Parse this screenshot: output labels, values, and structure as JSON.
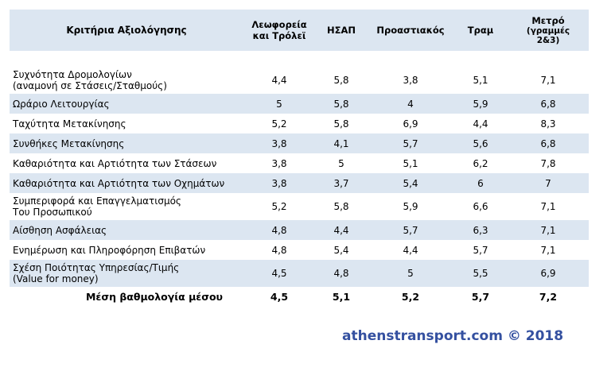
{
  "header": {
    "criteria": "Κριτήρια Αξιολόγησης",
    "bus_line1": "Λεωφορεία",
    "bus_line2": "και Τρόλεϊ",
    "isap": "ΗΣΑΠ",
    "suburban": "Προαστιακός",
    "tram": "Τραμ",
    "metro_line1": "Μετρό",
    "metro_line2": "(γραμμές",
    "metro_line3": "2&3)"
  },
  "rows": [
    {
      "label1": "Συχνότητα Δρομολογίων",
      "label2": "(αναμονή σε Στάσεις/Σταθμούς)",
      "bus": "4,4",
      "isap": "5,8",
      "suburban": "3,8",
      "tram": "5,1",
      "metro": "7,1"
    },
    {
      "label1": "Ωράριο Λειτουργίας",
      "label2": "",
      "bus": "5",
      "isap": "5,8",
      "suburban": "4",
      "tram": "5,9",
      "metro": "6,8"
    },
    {
      "label1": "Ταχύτητα Μετακίνησης",
      "label2": "",
      "bus": "5,2",
      "isap": "5,8",
      "suburban": "6,9",
      "tram": "4,4",
      "metro": "8,3"
    },
    {
      "label1": "Συνθήκες Μετακίνησης",
      "label2": "",
      "bus": "3,8",
      "isap": "4,1",
      "suburban": "5,7",
      "tram": "5,6",
      "metro": "6,8"
    },
    {
      "label1": "Καθαριότητα και Αρτιότητα των Στάσεων",
      "label2": "",
      "bus": "3,8",
      "isap": "5",
      "suburban": "5,1",
      "tram": "6,2",
      "metro": "7,8"
    },
    {
      "label1": "Καθαριότητα και Αρτιότητα των Οχημάτων",
      "label2": "",
      "bus": "3,8",
      "isap": "3,7",
      "suburban": "5,4",
      "tram": "6",
      "metro": "7"
    },
    {
      "label1": "Συμπεριφορά και Επαγγελματισμός",
      "label2": "Του Προσωπικού",
      "bus": "5,2",
      "isap": "5,8",
      "suburban": "5,9",
      "tram": "6,6",
      "metro": "7,1"
    },
    {
      "label1": "Αίσθηση Ασφάλειας",
      "label2": "",
      "bus": "4,8",
      "isap": "4,4",
      "suburban": "5,7",
      "tram": "6,3",
      "metro": "7,1"
    },
    {
      "label1": "Ενημέρωση και Πληροφόρηση Επιβατών",
      "label2": "",
      "bus": "4,8",
      "isap": "5,4",
      "suburban": "4,4",
      "tram": "5,7",
      "metro": "7,1"
    },
    {
      "label1": "Σχέση Ποιότητας Υπηρεσίας/Τιμής",
      "label2": "(Value for money)",
      "bus": "4,5",
      "isap": "4,8",
      "suburban": "5",
      "tram": "5,5",
      "metro": "6,9"
    }
  ],
  "average": {
    "label": "Μέση βαθμολογία μέσου",
    "bus": "4,5",
    "isap": "5,1",
    "suburban": "5,2",
    "tram": "5,7",
    "metro": "7,2"
  },
  "credit": "athenstransport.com © 2018",
  "colors": {
    "header_fill": "#dce6f1",
    "stripe_fill": "#dce6f1",
    "credit_text": "#3450a0"
  }
}
